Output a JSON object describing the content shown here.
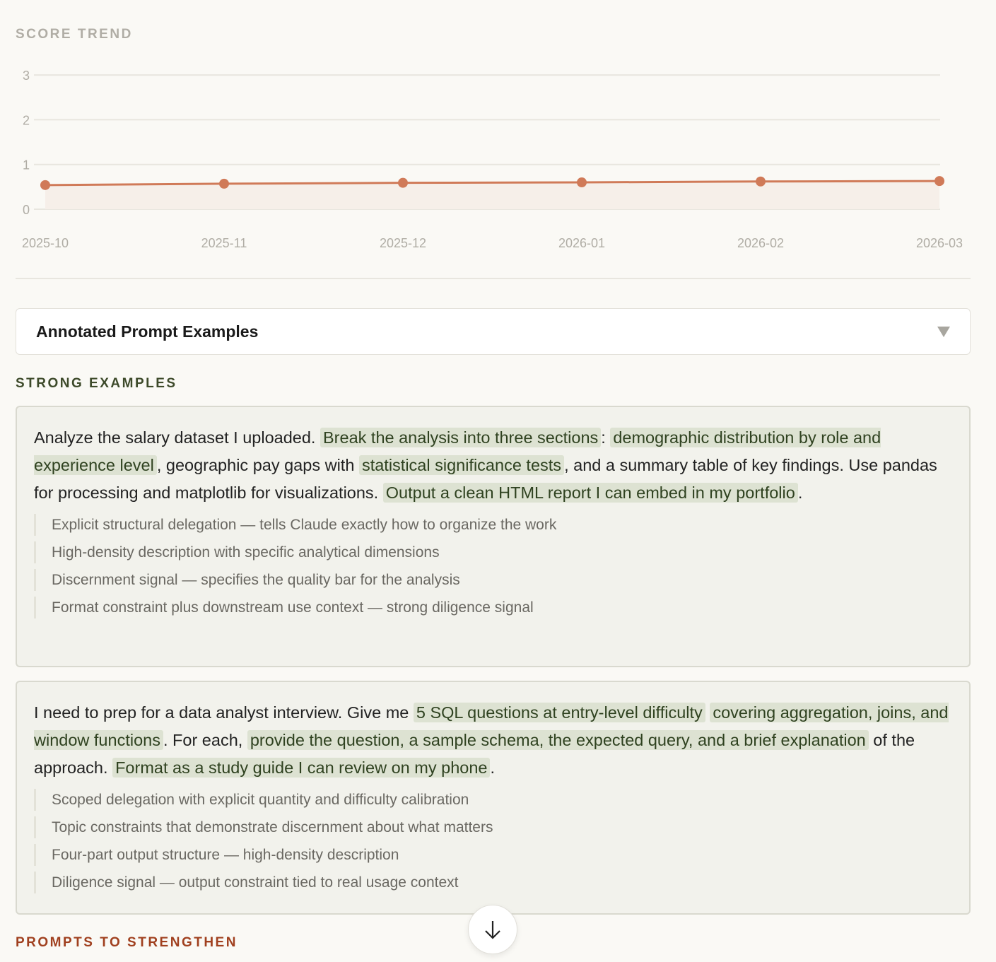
{
  "score_trend": {
    "title": "SCORE TREND"
  },
  "chart_data": {
    "type": "area",
    "categories": [
      "2025-10",
      "2025-11",
      "2025-12",
      "2026-01",
      "2026-02",
      "2026-03"
    ],
    "values": [
      0.54,
      0.57,
      0.59,
      0.6,
      0.62,
      0.63
    ],
    "yticks": [
      "0",
      "1",
      "2",
      "3"
    ],
    "ylim": [
      0,
      3
    ],
    "grid": true,
    "colors": {
      "line": "#d07a58",
      "fill": "#f6efe9",
      "grid": "#e8e6df"
    }
  },
  "accordion": {
    "title": "Annotated Prompt Examples",
    "icon": "triangle-down-icon"
  },
  "strong": {
    "title": "STRONG EXAMPLES",
    "examples": [
      {
        "segments": [
          {
            "text": "Analyze the salary dataset I uploaded. ",
            "hl": false
          },
          {
            "text": "Break the analysis into three sections",
            "hl": true
          },
          {
            "text": ": ",
            "hl": false
          },
          {
            "text": "demographic distribution by role and experience level",
            "hl": true
          },
          {
            "text": ", geographic pay gaps with ",
            "hl": false
          },
          {
            "text": "statistical significance tests",
            "hl": true
          },
          {
            "text": ", and a summary table of key findings. Use pandas for processing and matplotlib for visualizations. ",
            "hl": false
          },
          {
            "text": "Output a clean HTML report I can embed in my portfolio",
            "hl": true
          },
          {
            "text": ".",
            "hl": false
          }
        ],
        "notes": [
          "Explicit structural delegation — tells Claude exactly how to organize the work",
          "High-density description with specific analytical dimensions",
          "Discernment signal — specifies the quality bar for the analysis",
          "Format constraint plus downstream use context — strong diligence signal"
        ]
      },
      {
        "segments": [
          {
            "text": "I need to prep for a data analyst interview. Give me ",
            "hl": false
          },
          {
            "text": "5 SQL questions at entry-level difficulty",
            "hl": true
          },
          {
            "text": " ",
            "hl": false
          },
          {
            "text": "covering aggregation, joins, and window functions",
            "hl": true
          },
          {
            "text": ". For each, ",
            "hl": false
          },
          {
            "text": "provide the question, a sample schema, the expected query, and a brief explanation",
            "hl": true
          },
          {
            "text": " of the approach. ",
            "hl": false
          },
          {
            "text": "Format as a study guide I can review on my phone",
            "hl": true
          },
          {
            "text": ".",
            "hl": false
          }
        ],
        "notes": [
          "Scoped delegation with explicit quantity and difficulty calibration",
          "Topic constraints that demonstrate discernment about what matters",
          "Four-part output structure — high-density description",
          "Diligence signal — output constraint tied to real usage context"
        ]
      }
    ]
  },
  "weak": {
    "title": "PROMPTS TO STRENGTHEN"
  },
  "scroll_button": {
    "icon": "arrow-down-icon"
  }
}
